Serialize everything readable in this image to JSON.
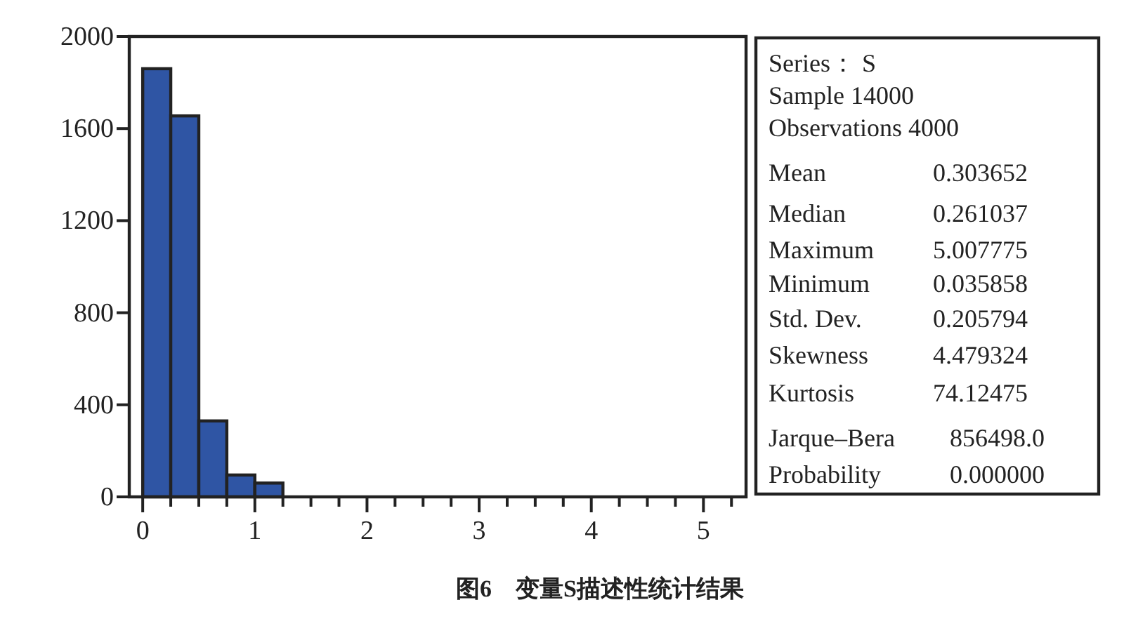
{
  "chart_data": [
    {
      "type": "histogram",
      "title": "图6　变量S描述性统计结果",
      "bins": [
        0,
        0.25,
        0.5,
        0.75,
        1,
        1.25
      ],
      "values": [
        1860,
        1655,
        330,
        95,
        60
      ],
      "color": "#2f55a4",
      "xlim": [
        -0.12,
        5.38
      ],
      "ylim": [
        0,
        2000
      ],
      "xticks": [
        0,
        {
          "value": 0.25,
          "label": null
        },
        {
          "value": 0.5,
          "label": null
        },
        {
          "value": 0.75,
          "label": null
        },
        1,
        {
          "value": 1.25,
          "label": null
        },
        {
          "value": 1.5,
          "label": null
        },
        {
          "value": 1.75,
          "label": null
        },
        2,
        {
          "value": 2.25,
          "label": null
        },
        {
          "value": 2.5,
          "label": null
        },
        {
          "value": 2.75,
          "label": null
        },
        3,
        {
          "value": 3.25,
          "label": null
        },
        {
          "value": 3.5,
          "label": null
        },
        {
          "value": 3.75,
          "label": null
        },
        4,
        {
          "value": 4.25,
          "label": null
        },
        {
          "value": 4.5,
          "label": null
        },
        {
          "value": 4.75,
          "label": null
        },
        5,
        {
          "value": 5.25,
          "label": null
        }
      ],
      "yticks": [
        0,
        400,
        800,
        1200,
        1600,
        2000
      ]
    },
    {
      "type": "other",
      "annotations": [
        "Series： S",
        "Sample 14000",
        "Observations 4000",
        "Mean",
        "0.303652",
        "Median",
        "0.261037",
        "Maximum",
        "5.007775",
        "Minimum",
        "0.035858",
        "Std. Dev.",
        "0.205794",
        "Skewness",
        "4.479324",
        "Kurtosis",
        "74.12475",
        "Jarque–Bera",
        "856498.0",
        "Probability",
        "0.000000"
      ]
    }
  ]
}
